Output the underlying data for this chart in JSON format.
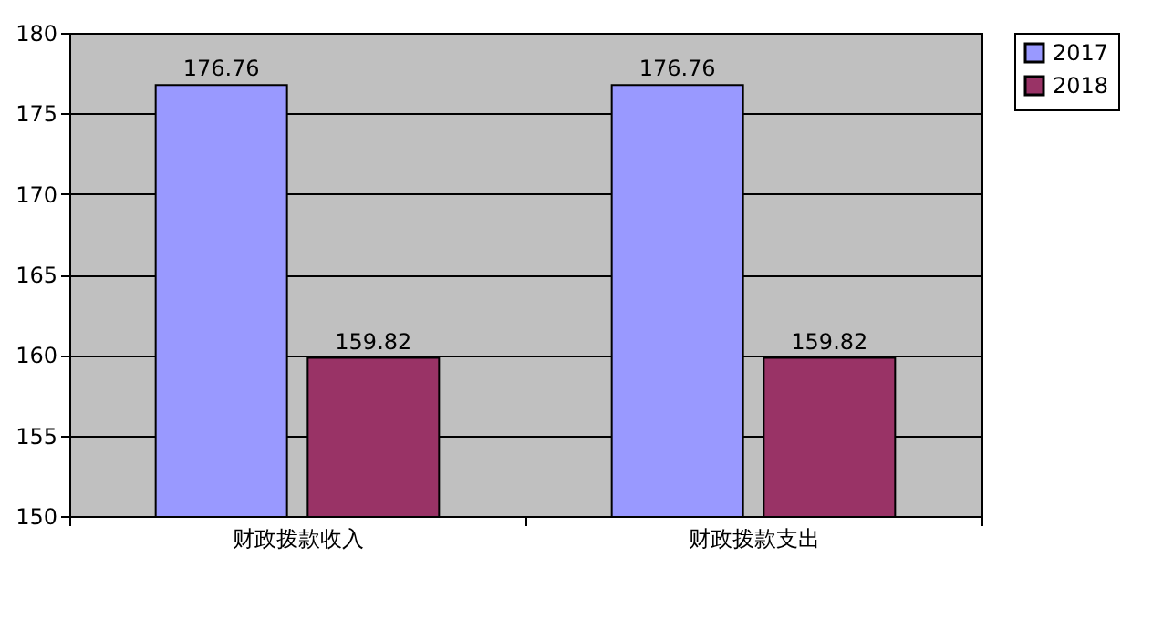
{
  "chart_data": {
    "type": "bar",
    "categories": [
      "财政拨款收入",
      "财政拨款支出"
    ],
    "series": [
      {
        "name": "2017",
        "color": "#9999ff",
        "values": [
          176.76,
          176.76
        ]
      },
      {
        "name": "2018",
        "color": "#993366",
        "values": [
          159.82,
          159.82
        ]
      }
    ],
    "ylim": [
      150,
      180
    ],
    "yticks": [
      150,
      155,
      160,
      165,
      170,
      175,
      180
    ],
    "grid": "y",
    "legend": "right",
    "data_labels": true
  }
}
